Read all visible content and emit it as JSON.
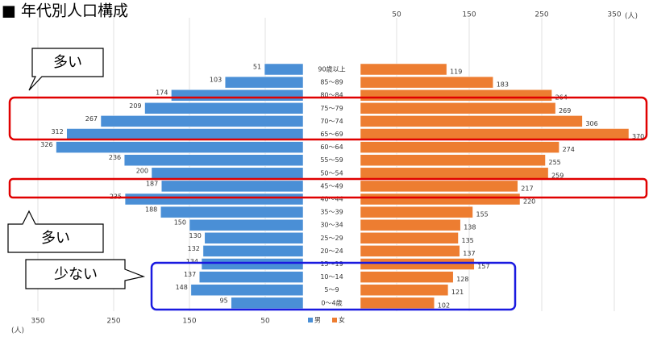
{
  "chart_data": {
    "type": "pyramid",
    "title": "■ 年代別人口構成",
    "categories": [
      "90歳以上",
      "85～89",
      "80～84",
      "75～79",
      "70～74",
      "65～69",
      "60～64",
      "55～59",
      "50～54",
      "45～49",
      "40～44",
      "35～39",
      "30～34",
      "25～29",
      "20～24",
      "15～19",
      "10～14",
      "5～9",
      "0～4歳"
    ],
    "series": [
      {
        "name": "男",
        "color": "#4a8fd6",
        "values": [
          51,
          103,
          174,
          209,
          267,
          312,
          326,
          236,
          200,
          187,
          235,
          188,
          150,
          130,
          132,
          134,
          137,
          148,
          95
        ]
      },
      {
        "name": "女",
        "color": "#ed7d31",
        "values": [
          119,
          183,
          264,
          269,
          306,
          370,
          274,
          255,
          259,
          217,
          220,
          155,
          138,
          135,
          137,
          157,
          128,
          121,
          102
        ]
      }
    ],
    "xlim": [
      0,
      400
    ],
    "xticks": [
      50,
      150,
      250,
      350
    ],
    "x_unit": "(人)",
    "grid": true,
    "annotations": [
      "多い",
      "多い",
      "少ない"
    ]
  }
}
